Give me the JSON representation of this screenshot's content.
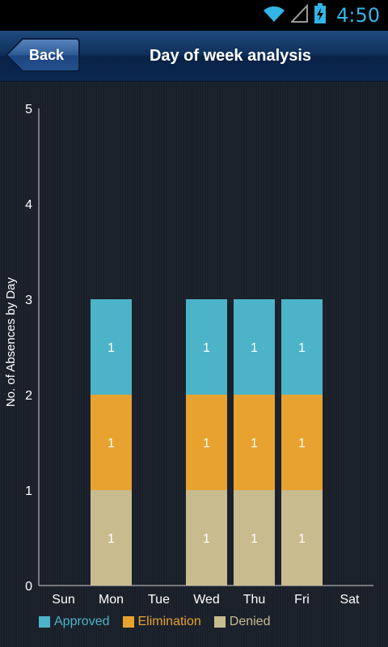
{
  "status_bar": {
    "time": "4:50",
    "icons": [
      "wifi-icon",
      "signal-icon",
      "battery-charging-icon"
    ]
  },
  "header": {
    "back_label": "Back",
    "title": "Day of week analysis"
  },
  "colors": {
    "approved": "#4db3c8",
    "elimination": "#e8a22f",
    "denied": "#c8bb8e",
    "header_blue": "#0f2f5a",
    "clock": "#33b5e5"
  },
  "chart_data": {
    "type": "bar",
    "stacked": true,
    "categories": [
      "Sun",
      "Mon",
      "Tue",
      "Wed",
      "Thu",
      "Fri",
      "Sat"
    ],
    "series": [
      {
        "name": "Denied",
        "values": [
          0,
          1,
          0,
          1,
          1,
          1,
          0
        ]
      },
      {
        "name": "Elimination",
        "values": [
          0,
          1,
          0,
          1,
          1,
          1,
          0
        ]
      },
      {
        "name": "Approved",
        "values": [
          0,
          1,
          0,
          1,
          1,
          1,
          0
        ]
      }
    ],
    "ylabel": "No. of Absences by Day",
    "xlabel": "",
    "ylim": [
      0,
      5
    ],
    "yticks": [
      "0",
      "1",
      "2",
      "3",
      "4",
      "5"
    ],
    "legend": [
      "Approved",
      "Elimination",
      "Denied"
    ],
    "legend_position": "bottom-left"
  }
}
